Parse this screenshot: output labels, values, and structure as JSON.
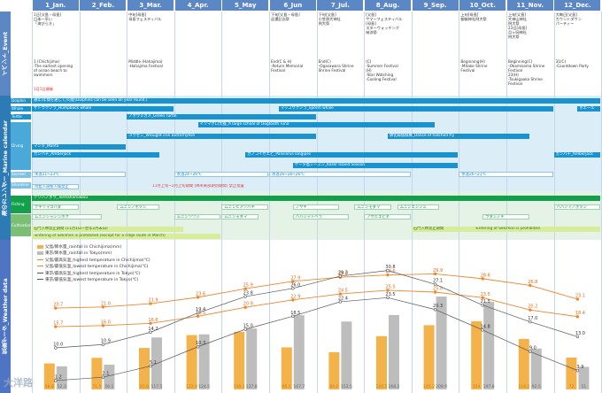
{
  "months": [
    "1_Jan.",
    "2_Feb.",
    "3_Mar.",
    "4_Apr.",
    "5_May",
    "6_Jun",
    "7_Jul.",
    "8_Aug.",
    "9_Sep.",
    "10_Oct.",
    "11_Nov.",
    "12_Dec."
  ],
  "sections": {
    "event": "イベント_Event",
    "calendar": "海のカレンダー_Marine calendar",
    "weather": "気象データ_Weather data"
  },
  "rowlabels": {
    "dolphin": "Dolphin",
    "whale": "Whale",
    "turtle": "Turtle",
    "diving": "Diving",
    "snorkel": "Snorkel",
    "shoreline": "Shoreline",
    "fishing": "Fishing",
    "cultivation": "Cultivation"
  },
  "events": [
    {
      "m": 0,
      "text": "1日[父島・母島]\n日本一早い\n「海びらき」",
      "t": 14
    },
    {
      "m": 0,
      "text": "1 (Chichijima)\n-The earliest opening\nof ocean beach to\nswimmers",
      "t": 67
    },
    {
      "m": 0,
      "text": "1月1日開催",
      "t": 98,
      "red": true
    },
    {
      "m": 2,
      "text": "中旬[母島]\n母島フェスティバル",
      "t": 14
    },
    {
      "m": 2,
      "text": "Middle (Hahajima)\n-Hahajima Festival",
      "t": 67
    },
    {
      "m": 5,
      "text": "下旬[父島・母島]\n返還記念祭",
      "t": 14
    },
    {
      "m": 5,
      "text": "End(C & H)\n-Return Memorial\nFestival",
      "t": 67
    },
    {
      "m": 6,
      "text": "下旬[父島]\n小笠原大神社\n例大祭",
      "t": 14
    },
    {
      "m": 6,
      "text": "End(C)\n-Ogasawara Shrine\nShrine Festival",
      "t": 67
    },
    {
      "m": 7,
      "text": "[父島]\nサマーフェスティバル\n[母島]\nスターウォッチング\n納涼祭",
      "t": 14
    },
    {
      "m": 7,
      "text": "(C)\n-Summer Festival\n(H)\n-Star Watching\n-Cooling Festival",
      "t": 67
    },
    {
      "m": 9,
      "text": "上旬[母島]\n御嶽神社例大祭",
      "t": 14
    },
    {
      "m": 9,
      "text": "Beginning(H)\n-Mitake Shrine\nFestival",
      "t": 67
    },
    {
      "m": 10,
      "text": "上旬[父島]\n大神山神社\n例大祭\n23日[母島]\n月ヶ岡神社\n例大祭",
      "t": 14
    },
    {
      "m": 10,
      "text": "Beginning(C)\n-Okamisama Shrine\nFestival\n23(H)\n-Tsukigaoka Shrine\nFestival",
      "t": 67
    },
    {
      "m": 11,
      "text": "大晦日[父島]\nカウントダウン\nパーティー",
      "t": 14
    },
    {
      "m": 11,
      "text": "31(C)\n-Countdown Party",
      "t": 67
    }
  ],
  "bars": [
    {
      "row": "dolphin",
      "text": "通年(年間を通じて)可能(Dolphins can be seen all year round.)",
      "s": 0,
      "e": 12,
      "c": "b-blue",
      "t": 111
    },
    {
      "row": "whale",
      "text": "ザトウクジラ_Humpback whale",
      "s": 0,
      "e": 3,
      "c": "b-blue",
      "t": 120
    },
    {
      "row": "whale",
      "text": "マッコウクジラ_Sperm whale",
      "s": 5.2,
      "e": 11,
      "c": "b-blue",
      "t": 120
    },
    {
      "row": "whale",
      "text": "ホエール",
      "s": 11.5,
      "e": 12,
      "c": "b-blue",
      "t": 120
    },
    {
      "row": "turtle",
      "text": "アオウミガメ_Green Turtle",
      "s": 2,
      "e": 6,
      "c": "b-blue",
      "t": 129
    },
    {
      "row": "diving",
      "text": "イソマグロ大群_A large school of Dogtooth Tuna",
      "s": 3.5,
      "e": 8.5,
      "c": "b-blue",
      "t": 138
    },
    {
      "row": "diving",
      "text": "ユウゼン_Wrought iron Butterflyfish",
      "s": 2,
      "e": 6,
      "c": "b-blue",
      "t": 151
    },
    {
      "row": "diving",
      "text": "鉢化嫁魚群舞_Dance of hatched fry",
      "s": 7.5,
      "e": 10.5,
      "c": "b-blue",
      "t": 151
    },
    {
      "row": "diving",
      "text": "マンタ_Manta",
      "s": 0,
      "e": 2,
      "c": "b-blue",
      "t": 163
    },
    {
      "row": "diving",
      "text": "カンパチ_Amberjack",
      "s": 0,
      "e": 2.7,
      "c": "b-blue",
      "t": 172
    },
    {
      "row": "diving",
      "text": "カノコイセエビ_Pansilirus longipes",
      "s": 4.5,
      "e": 9,
      "c": "b-blue",
      "t": 172
    },
    {
      "row": "diving",
      "text": "カンパチ_Amberjack",
      "s": 11,
      "e": 12,
      "c": "b-blue",
      "t": 172
    },
    {
      "row": "diving",
      "text": "ケータ島シーズン_Kezer Island Season",
      "s": 5.5,
      "e": 9,
      "c": "b-blue",
      "t": 184
    },
    {
      "row": "snorkel",
      "text": "水温21~23℃",
      "s": 0,
      "e": 2,
      "c": "b-white",
      "t": 194
    },
    {
      "row": "snorkel",
      "text": "水温24~26℃",
      "s": 3,
      "e": 5,
      "c": "b-white",
      "t": 194
    },
    {
      "row": "snorkel",
      "text": "水温26~28~26℃",
      "s": 5,
      "e": 8,
      "c": "b-white",
      "t": 194
    },
    {
      "row": "snorkel",
      "text": "水温26~21℃",
      "s": 9,
      "e": 11,
      "c": "b-white",
      "t": 194
    },
    {
      "row": "shoreline",
      "text": "母島入道堅入域禁止",
      "s": 0,
      "e": 1,
      "c": "b-white",
      "t": 208
    },
    {
      "row": "shoreline",
      "text": "11月上旬~2月上旬期間 (降率東部期別期間) 禁止措置",
      "s": 2.5,
      "e": 6,
      "c": "b-red",
      "t": 208
    },
    {
      "row": "fishing",
      "text": "テリハノボウ_Terihahamabou",
      "s": 0,
      "e": 12,
      "c": "b-green",
      "t": 221
    },
    {
      "row": "fishing",
      "text": "ナギツマゴハダ",
      "s": 0,
      "e": 1,
      "c": "b-whiteg",
      "t": 231
    },
    {
      "row": "fishing",
      "text": "ムニンノボタン",
      "s": 1.8,
      "e": 2.7,
      "c": "b-whiteg",
      "t": 231
    },
    {
      "row": "fishing",
      "text": "ムニンヒメツバキ",
      "s": 4,
      "e": 5,
      "c": "b-whiteg",
      "t": 231
    },
    {
      "row": "fishing",
      "text": "ノヤギ",
      "s": 5.5,
      "e": 6.5,
      "c": "b-whiteg",
      "t": 231
    },
    {
      "row": "fishing",
      "text": "ムニンモダマ",
      "s": 6.8,
      "e": 7.6,
      "c": "b-whiteg",
      "t": 231
    },
    {
      "row": "fishing",
      "text": "ムニンエンジュ",
      "s": 7.7,
      "e": 8.6,
      "c": "b-whiteg",
      "t": 231
    },
    {
      "row": "fishing",
      "text": "ハハジマノボタン",
      "s": 11,
      "e": 12,
      "c": "b-whiteg",
      "t": 231
    },
    {
      "row": "cultivation",
      "text": "ムニンシャシンボク",
      "s": 0,
      "e": 1.5,
      "c": "b-whiteg",
      "t": 242
    },
    {
      "row": "cultivation",
      "text": "ムニンツツジ",
      "s": 3,
      "e": 4,
      "c": "b-whiteg",
      "t": 242
    },
    {
      "row": "cultivation",
      "text": "ムニンモダマ",
      "s": 4,
      "e": 4.8,
      "c": "b-whiteg",
      "t": 242
    },
    {
      "row": "cultivation",
      "text": "ハハジマトベラ",
      "s": 5.5,
      "e": 6.7,
      "c": "b-whiteg",
      "t": 242
    },
    {
      "row": "cultivation",
      "text": "アサヒエビネ",
      "s": 7,
      "e": 8,
      "c": "b-whiteg",
      "t": 242
    },
    {
      "row": "cultivation",
      "text": "ウダンノキ",
      "s": 9.5,
      "e": 10.5,
      "c": "b-whiteg",
      "t": 242
    },
    {
      "row": "cultivation",
      "text": "石門入林禁止期間 (11月1日~翌年2月末日)",
      "s": 0,
      "e": 3.2,
      "c": "b-lime",
      "t": 256
    },
    {
      "row": "cultivation",
      "text": "-Entering of Sekimon is prohibited.(except for a ridge route in March)",
      "s": 0,
      "e": 4,
      "c": "b-lime",
      "t": 264
    },
    {
      "row": "cultivation",
      "text": "石門入林禁止期間",
      "s": 8,
      "e": 9.5,
      "c": "b-lime",
      "t": 256
    },
    {
      "row": "cultivation",
      "text": "-Entering of Sekimon is prohibited.",
      "s": 9.3,
      "e": 12,
      "c": "b-lime",
      "t": 256
    }
  ],
  "legend": [
    {
      "label": "父島/降水量_rainfall in Chichijima(mm)",
      "color": "#f4b24a",
      "kind": "bar"
    },
    {
      "label": "東京/降水量_rainfall in Tokyo(mm)",
      "color": "#bdbdbd",
      "kind": "bar"
    },
    {
      "label": "父島/最高気温_highest temperature in Chichijima(℃)",
      "color": "#f0862c",
      "kind": "line"
    },
    {
      "label": "父島/最低気温_lowest temperature in Chichijima(℃)",
      "color": "#f0862c",
      "kind": "line"
    },
    {
      "label": "東京/最高気温_highest temperature in Tokyo(℃)",
      "color": "#555555",
      "kind": "line"
    },
    {
      "label": "東京/最低気温_lowest temperature in Tokyo(℃)",
      "color": "#555555",
      "kind": "line"
    }
  ],
  "chart_data": {
    "type": "bar",
    "categories": [
      "1_Jan.",
      "2_Feb.",
      "3_Mar.",
      "4_Apr.",
      "5_May",
      "6_Jun",
      "7_Jul.",
      "8_Aug.",
      "9_Sep.",
      "10_Oct.",
      "11_Nov.",
      "12_Dec."
    ],
    "series": [
      {
        "name": "父島/降水量_rainfall in Chichijima(mm)",
        "type": "bar",
        "values": [
          58.8,
          71.5,
          93.8,
          122.9,
          130.1,
          95.1,
          84.2,
          120.5,
          145.2,
          154.0,
          114.2,
          72.0
        ]
      },
      {
        "name": "東京/降水量_rainfall in Tokyo(mm)",
        "type": "bar",
        "values": [
          52.3,
          56.1,
          117.5,
          124.5,
          137.8,
          167.7,
          153.5,
          168.2,
          209.9,
          197.8,
          92.5,
          51.0
        ]
      },
      {
        "name": "父島/最高気温_highest temperature in Chichijima(℃)",
        "type": "line",
        "values": [
          20.7,
          21.0,
          21.9,
          23.6,
          25.9,
          27.9,
          29.0,
          29.6,
          29.9,
          28.6,
          26.8,
          23.1
        ]
      },
      {
        "name": "父島/最低気温_lowest temperature in Chichijima(℃)",
        "type": "line",
        "values": [
          15.7,
          16.0,
          16.6,
          18.5,
          20.9,
          22.9,
          24.5,
          25.5,
          25.0,
          23.5,
          20.2,
          18.4
        ]
      },
      {
        "name": "東京/最高気温_highest temperature in Tokyo(℃)",
        "type": "line",
        "values": [
          10.0,
          10.9,
          14.2,
          19.4,
          23.8,
          26.0,
          29.3,
          30.8,
          27.1,
          21.5,
          17.0,
          13.0
        ]
      },
      {
        "name": "東京/最低気温_lowest temperature in Tokyo(℃)",
        "type": "line",
        "values": [
          1.2,
          2.1,
          5.1,
          10.3,
          15.0,
          18.5,
          22.4,
          23.5,
          20.3,
          14.8,
          9.0,
          3.9
        ]
      }
    ],
    "ylim_temp": [
      0,
      35
    ],
    "ylim_rain": [
      0,
      300
    ]
  },
  "watermark": "大洋路"
}
